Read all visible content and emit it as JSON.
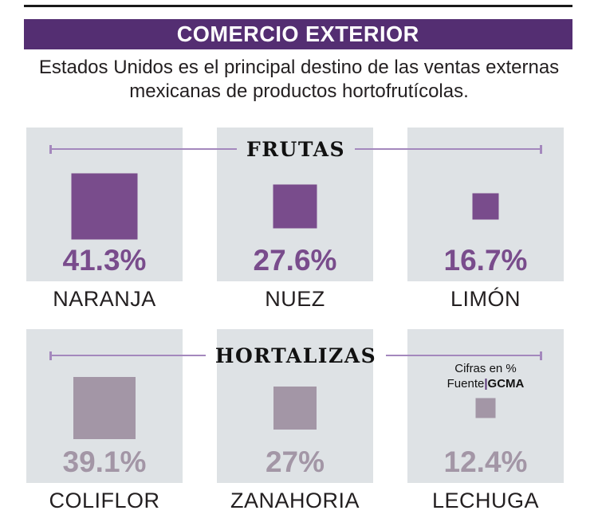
{
  "header": {
    "title": "COMERCIO EXTERIOR"
  },
  "subtitle": {
    "lines": [
      "Estados Unidos es el principal destino de las ventas externas",
      "mexicanas de productos hortofrutícolas."
    ]
  },
  "sections": [
    {
      "title": "FRUTAS",
      "accent": "#794C8C",
      "items": [
        {
          "name": "NARANJA",
          "value": "41.3%",
          "pct": 41.3
        },
        {
          "name": "NUEZ",
          "value": "27.6%",
          "pct": 27.6
        },
        {
          "name": "LIMÓN",
          "value": "16.7%",
          "pct": 16.7
        }
      ]
    },
    {
      "title": "HORTALIZAS",
      "accent": "#A396A6",
      "items": [
        {
          "name": "COLIFLOR",
          "value": "39.1%",
          "pct": 39.1
        },
        {
          "name": "ZANAHORIA",
          "value": "27%",
          "pct": 27
        },
        {
          "name": "LECHUGA",
          "value": "12.4%",
          "pct": 12.4
        }
      ]
    }
  ],
  "note": {
    "units": "Cifras en %",
    "source_label": "Fuente",
    "source_separator": "|",
    "source_value": "GCMA"
  },
  "colors": {
    "top_rule": "#1A1A1A",
    "header_bar": "#542E72",
    "card_bg": "#DEE2E5",
    "section_line": "#A488BD",
    "fruits_accent": "#794C8C",
    "vegetables_accent": "#A396A6",
    "text": "#231F20",
    "title_text": "#FFFFFF"
  },
  "chart_data": [
    {
      "type": "bar",
      "title": "FRUTAS",
      "categories": [
        "NARANJA",
        "NUEZ",
        "LIMÓN"
      ],
      "values": [
        41.3,
        27.6,
        16.7
      ],
      "unit": "%",
      "note": "share of Mexican external sales going to the United States, squares sized proportionally to value"
    },
    {
      "type": "bar",
      "title": "HORTALIZAS",
      "categories": [
        "COLIFLOR",
        "ZANAHORIA",
        "LECHUGA"
      ],
      "values": [
        39.1,
        27,
        12.4
      ],
      "unit": "%",
      "note": "share of Mexican external sales going to the United States, squares sized proportionally to value"
    }
  ]
}
